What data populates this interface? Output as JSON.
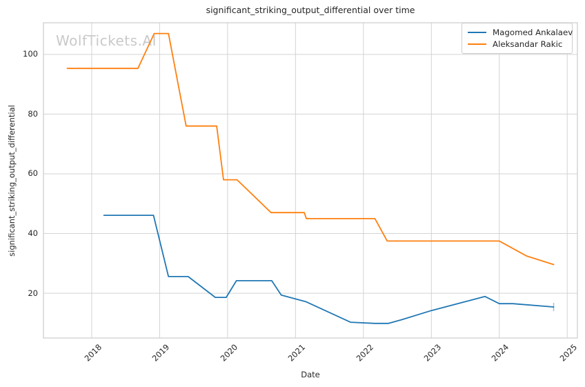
{
  "colors": {
    "background": "#ffffff",
    "grid": "#d3d3d3",
    "spine": "#cbcbcb",
    "text": "#262626",
    "watermark": "#c9c9c9",
    "series_blue": "#1f77b4",
    "series_orange": "#ff7f0e"
  },
  "watermark_text": "WolfTickets.AI",
  "chart_data": {
    "type": "line",
    "title": "significant_striking_output_differential over time",
    "xlabel": "Date",
    "ylabel": "significant_striking_output_differential",
    "grid": true,
    "legend_position": "upper right",
    "xlim": [
      2017.29,
      2025.15
    ],
    "ylim": [
      5,
      110.6
    ],
    "x_ticks": [
      2018,
      2019,
      2020,
      2021,
      2022,
      2023,
      2024,
      2025
    ],
    "x_tick_labels": [
      "2018",
      "2019",
      "2020",
      "2021",
      "2022",
      "2023",
      "2024",
      "2025"
    ],
    "y_ticks": [
      20,
      40,
      60,
      80,
      100
    ],
    "y_tick_labels": [
      "20",
      "40",
      "60",
      "80",
      "100"
    ],
    "series": [
      {
        "name": "Magomed Ankalaev",
        "color": "#1f77b4",
        "end_cap": true,
        "points": [
          [
            2018.18,
            46.1
          ],
          [
            2018.91,
            46.1
          ],
          [
            2019.13,
            25.6
          ],
          [
            2019.42,
            25.6
          ],
          [
            2019.82,
            18.6
          ],
          [
            2019.98,
            18.6
          ],
          [
            2020.13,
            24.2
          ],
          [
            2020.65,
            24.2
          ],
          [
            2020.79,
            19.4
          ],
          [
            2021.15,
            17.2
          ],
          [
            2021.81,
            10.3
          ],
          [
            2022.17,
            9.9
          ],
          [
            2022.37,
            9.9
          ],
          [
            2022.57,
            11.2
          ],
          [
            2023.0,
            14.2
          ],
          [
            2023.79,
            18.9
          ],
          [
            2024.0,
            16.5
          ],
          [
            2024.2,
            16.5
          ],
          [
            2024.8,
            15.4
          ]
        ]
      },
      {
        "name": "Aleksandar Rakic",
        "color": "#ff7f0e",
        "end_cap": false,
        "points": [
          [
            2017.64,
            95.3
          ],
          [
            2018.68,
            95.3
          ],
          [
            2018.92,
            107.0
          ],
          [
            2019.13,
            107.0
          ],
          [
            2019.39,
            76.0
          ],
          [
            2019.84,
            76.0
          ],
          [
            2019.94,
            58.0
          ],
          [
            2020.14,
            58.0
          ],
          [
            2020.64,
            47.0
          ],
          [
            2021.13,
            47.0
          ],
          [
            2021.16,
            45.0
          ],
          [
            2022.17,
            45.0
          ],
          [
            2022.35,
            37.5
          ],
          [
            2024.0,
            37.5
          ],
          [
            2024.4,
            32.5
          ],
          [
            2024.8,
            29.6
          ]
        ]
      }
    ]
  }
}
